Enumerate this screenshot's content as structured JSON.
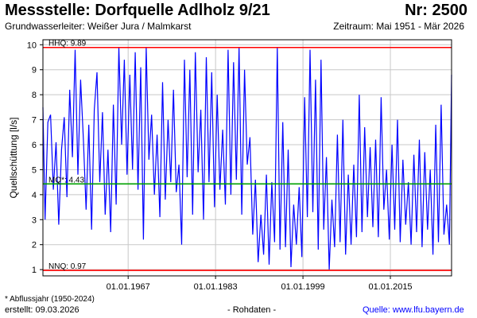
{
  "header": {
    "title": "Messstelle: Dorfquelle Adlholz 9/21",
    "number": "Nr: 2500",
    "aquifer": "Grundwasserleiter:  Weißer Jura / Malmkarst",
    "period": "Zeitraum: Mai 1951 - Mär 2026"
  },
  "footer": {
    "note": "* Abflussjahr (1950-2024)",
    "created": "erstellt:  09.03.2026",
    "raw": "- Rohdaten -",
    "source": "Quelle: www.lfu.bayern.de"
  },
  "chart_data": {
    "type": "line",
    "title": "Messstelle: Dorfquelle Adlholz 9/21",
    "xlabel": "",
    "ylabel": "Quellschüttung [l/s]",
    "ylim": [
      0.75,
      10.2
    ],
    "xlim": [
      1951.4,
      2026.2
    ],
    "yticks": [
      1,
      2,
      3,
      4,
      5,
      6,
      7,
      8,
      9,
      10
    ],
    "xticks": [
      {
        "value": 1967.0,
        "label": "01.01.1967"
      },
      {
        "value": 1983.0,
        "label": "01.01.1983"
      },
      {
        "value": 1999.0,
        "label": "01.01.1999"
      },
      {
        "value": 2015.0,
        "label": "01.01.2015"
      }
    ],
    "grid": true,
    "reference_lines": [
      {
        "label": "HHQ: 9.89",
        "value": 9.89,
        "color": "#ff0000"
      },
      {
        "label": "MQ*: 4.43",
        "value": 4.43,
        "color": "#00a000"
      },
      {
        "label": "NNQ: 0.97",
        "value": 0.97,
        "color": "#ff0000"
      }
    ],
    "series": [
      {
        "color": "#0000ff",
        "points": [
          [
            1951.4,
            7.5
          ],
          [
            1951.8,
            3.0
          ],
          [
            1952.3,
            6.9
          ],
          [
            1952.8,
            7.2
          ],
          [
            1953.3,
            4.2
          ],
          [
            1953.8,
            6.1
          ],
          [
            1954.3,
            2.8
          ],
          [
            1954.8,
            5.8
          ],
          [
            1955.3,
            7.1
          ],
          [
            1955.8,
            3.9
          ],
          [
            1956.3,
            8.2
          ],
          [
            1956.8,
            5.5
          ],
          [
            1957.3,
            9.8
          ],
          [
            1957.8,
            4.8
          ],
          [
            1958.3,
            8.6
          ],
          [
            1958.8,
            6.2
          ],
          [
            1959.3,
            3.4
          ],
          [
            1959.8,
            6.8
          ],
          [
            1960.3,
            2.6
          ],
          [
            1960.8,
            7.4
          ],
          [
            1961.3,
            8.9
          ],
          [
            1961.8,
            4.5
          ],
          [
            1962.3,
            7.3
          ],
          [
            1962.8,
            3.2
          ],
          [
            1963.3,
            5.8
          ],
          [
            1963.8,
            2.5
          ],
          [
            1964.3,
            7.6
          ],
          [
            1964.8,
            3.6
          ],
          [
            1965.3,
            9.9
          ],
          [
            1965.8,
            6.0
          ],
          [
            1966.3,
            9.4
          ],
          [
            1966.8,
            4.8
          ],
          [
            1967.3,
            8.8
          ],
          [
            1967.8,
            5.0
          ],
          [
            1968.3,
            9.7
          ],
          [
            1968.8,
            4.2
          ],
          [
            1969.3,
            9.1
          ],
          [
            1969.8,
            2.2
          ],
          [
            1970.3,
            9.9
          ],
          [
            1970.8,
            5.4
          ],
          [
            1971.3,
            7.2
          ],
          [
            1971.8,
            4.0
          ],
          [
            1972.3,
            6.4
          ],
          [
            1972.8,
            3.1
          ],
          [
            1973.3,
            8.5
          ],
          [
            1973.8,
            3.8
          ],
          [
            1974.3,
            7.0
          ],
          [
            1974.8,
            4.5
          ],
          [
            1975.3,
            8.2
          ],
          [
            1975.8,
            4.1
          ],
          [
            1976.3,
            5.2
          ],
          [
            1976.8,
            2.0
          ],
          [
            1977.3,
            9.4
          ],
          [
            1977.8,
            4.7
          ],
          [
            1978.3,
            9.0
          ],
          [
            1978.8,
            3.2
          ],
          [
            1979.3,
            9.7
          ],
          [
            1979.8,
            4.9
          ],
          [
            1980.3,
            7.4
          ],
          [
            1980.8,
            3.0
          ],
          [
            1981.3,
            9.5
          ],
          [
            1981.8,
            4.5
          ],
          [
            1982.3,
            8.9
          ],
          [
            1982.8,
            3.5
          ],
          [
            1983.3,
            8.0
          ],
          [
            1983.8,
            4.2
          ],
          [
            1984.3,
            6.6
          ],
          [
            1984.8,
            3.6
          ],
          [
            1985.3,
            9.8
          ],
          [
            1985.8,
            4.0
          ],
          [
            1986.3,
            9.3
          ],
          [
            1986.8,
            4.6
          ],
          [
            1987.3,
            9.9
          ],
          [
            1987.8,
            3.2
          ],
          [
            1988.3,
            9.0
          ],
          [
            1988.8,
            5.2
          ],
          [
            1989.3,
            6.3
          ],
          [
            1989.8,
            2.4
          ],
          [
            1990.3,
            4.6
          ],
          [
            1990.8,
            1.3
          ],
          [
            1991.3,
            3.2
          ],
          [
            1991.8,
            1.6
          ],
          [
            1992.3,
            4.8
          ],
          [
            1992.8,
            1.2
          ],
          [
            1993.3,
            4.5
          ],
          [
            1993.8,
            2.1
          ],
          [
            1994.3,
            9.9
          ],
          [
            1994.8,
            1.8
          ],
          [
            1995.3,
            6.9
          ],
          [
            1995.8,
            1.9
          ],
          [
            1996.3,
            5.8
          ],
          [
            1996.8,
            1.1
          ],
          [
            1997.3,
            3.6
          ],
          [
            1997.8,
            2.0
          ],
          [
            1998.3,
            4.3
          ],
          [
            1998.8,
            1.5
          ],
          [
            1999.3,
            7.9
          ],
          [
            1999.8,
            3.1
          ],
          [
            2000.3,
            9.8
          ],
          [
            2000.8,
            3.3
          ],
          [
            2001.3,
            8.6
          ],
          [
            2001.8,
            1.8
          ],
          [
            2002.3,
            9.4
          ],
          [
            2002.8,
            2.6
          ],
          [
            2003.3,
            5.5
          ],
          [
            2003.8,
            1.0
          ],
          [
            2004.3,
            3.8
          ],
          [
            2004.8,
            1.9
          ],
          [
            2005.3,
            6.4
          ],
          [
            2005.8,
            2.1
          ],
          [
            2006.3,
            7.0
          ],
          [
            2006.8,
            1.6
          ],
          [
            2007.3,
            4.8
          ],
          [
            2007.8,
            2.0
          ],
          [
            2008.3,
            5.2
          ],
          [
            2008.8,
            2.3
          ],
          [
            2009.3,
            8.0
          ],
          [
            2009.8,
            2.5
          ],
          [
            2010.3,
            6.7
          ],
          [
            2010.8,
            3.1
          ],
          [
            2011.3,
            5.9
          ],
          [
            2011.8,
            2.7
          ],
          [
            2012.3,
            6.2
          ],
          [
            2012.8,
            2.3
          ],
          [
            2013.3,
            7.9
          ],
          [
            2013.8,
            3.4
          ],
          [
            2014.3,
            5.0
          ],
          [
            2014.8,
            2.2
          ],
          [
            2015.3,
            6.0
          ],
          [
            2015.8,
            2.6
          ],
          [
            2016.3,
            7.0
          ],
          [
            2016.8,
            2.1
          ],
          [
            2017.3,
            5.4
          ],
          [
            2017.8,
            2.8
          ],
          [
            2018.3,
            4.5
          ],
          [
            2018.8,
            2.0
          ],
          [
            2019.3,
            5.6
          ],
          [
            2019.8,
            2.5
          ],
          [
            2020.3,
            6.2
          ],
          [
            2020.8,
            1.9
          ],
          [
            2021.3,
            5.7
          ],
          [
            2021.8,
            2.6
          ],
          [
            2022.3,
            5.0
          ],
          [
            2022.8,
            1.6
          ],
          [
            2023.3,
            6.8
          ],
          [
            2023.8,
            2.1
          ],
          [
            2024.3,
            7.6
          ],
          [
            2024.8,
            2.4
          ],
          [
            2025.3,
            3.6
          ],
          [
            2025.8,
            2.0
          ],
          [
            2026.2,
            8.8
          ]
        ]
      }
    ]
  }
}
